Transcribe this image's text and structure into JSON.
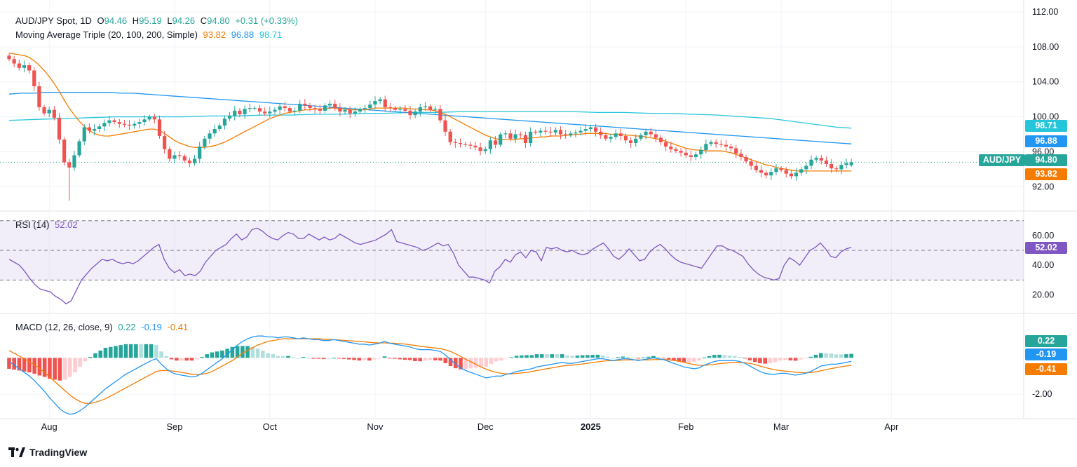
{
  "header": {
    "symbol": "AUD/JPY Spot, 1D",
    "o_label": "O",
    "o_value": "94.46",
    "h_label": "H",
    "h_value": "95.19",
    "l_label": "L",
    "l_value": "94.26",
    "c_label": "C",
    "c_value": "94.80",
    "change": "+0.31 (+0.33%)",
    "ma_label": "Moving Average Triple (20, 100, 200, Simple)",
    "ma20": "93.82",
    "ma100": "96.88",
    "ma200": "98.71"
  },
  "rsi_legend": {
    "label": "RSI (14)",
    "value": "52.02"
  },
  "macd_legend": {
    "label": "MACD (12, 26, close, 9)",
    "hist": "0.22",
    "macd": "-0.19",
    "signal": "-0.41"
  },
  "badges": {
    "ma200": "98.71",
    "ma100": "96.88",
    "pair": "AUD/JPY",
    "price": "94.80",
    "ma20": "93.82",
    "rsi": "52.02",
    "hist": "0.22",
    "macd": "-0.19",
    "signal": "-0.41"
  },
  "colors": {
    "up": "#26a69a",
    "down": "#ef5350",
    "ma20": "#f57c00",
    "ma100": "#2196f3",
    "ma200": "#26c6da",
    "rsi": "#7e57c2",
    "macd": "#2196f3",
    "signal": "#f57c00",
    "hist_up_strong": "#26a69a",
    "hist_up_weak": "#b2dfdb",
    "hist_down_strong": "#ef5350",
    "hist_down_weak": "#ffcdd2",
    "grid": "#f0f3fa"
  },
  "brand": {
    "name": "TradingView"
  },
  "chart_data": [
    {
      "type": "candlestick",
      "title": "AUD/JPY Spot, 1D",
      "price_ticks": [
        "112.00",
        "108.00",
        "104.00",
        "100.00",
        "96.00",
        "92.00"
      ],
      "ylim": [
        89.3,
        112.4
      ],
      "time_labels": [
        "Aug",
        "Sep",
        "Oct",
        "Nov",
        "Dec",
        "2025",
        "Feb",
        "Mar",
        "Apr"
      ],
      "label_bar_index": [
        8,
        33,
        52,
        73,
        95,
        116,
        135,
        154,
        176
      ],
      "last_ohlc": {
        "open": 94.46,
        "high": 95.19,
        "low": 94.26,
        "close": 94.8
      },
      "closes": [
        106.6,
        106.1,
        105.6,
        105.9,
        105.3,
        103.5,
        101.1,
        100.4,
        100.8,
        99.9,
        97.4,
        94.8,
        94.2,
        95.6,
        97.2,
        98.8,
        98.4,
        98.6,
        98.9,
        99.3,
        99.6,
        99.4,
        99.2,
        99.1,
        99.0,
        99.2,
        99.4,
        99.7,
        100.0,
        99.7,
        97.8,
        96.3,
        95.2,
        95.6,
        95.5,
        95.0,
        94.7,
        95.2,
        96.6,
        97.5,
        98.1,
        98.6,
        99.0,
        99.8,
        100.1,
        100.7,
        100.3,
        100.9,
        101.0,
        101.0,
        100.6,
        100.4,
        100.6,
        100.8,
        101.2,
        101.0,
        100.6,
        100.7,
        101.5,
        101.3,
        101.0,
        100.9,
        100.7,
        101.3,
        101.5,
        101.0,
        100.6,
        100.8,
        100.4,
        100.6,
        100.9,
        101.0,
        101.4,
        101.8,
        102.0,
        101.1,
        101.0,
        100.8,
        100.9,
        100.7,
        100.2,
        100.6,
        101.1,
        101.2,
        100.8,
        100.9,
        99.6,
        98.3,
        97.1,
        97.0,
        96.9,
        96.8,
        96.7,
        96.5,
        96.1,
        96.3,
        97.3,
        96.8,
        98.0,
        98.1,
        97.5,
        98.0,
        97.9,
        97.0,
        98.3,
        98.2,
        98.4,
        98.3,
        98.2,
        98.5,
        98.0,
        97.9,
        98.1,
        98.2,
        98.4,
        98.6,
        98.8,
        98.3,
        97.9,
        97.5,
        97.7,
        98.1,
        97.8,
        97.3,
        97.0,
        97.5,
        97.9,
        98.3,
        98.0,
        97.6,
        97.1,
        96.6,
        96.3,
        96.1,
        95.9,
        95.6,
        95.4,
        95.7,
        96.2,
        96.9,
        97.1,
        96.9,
        96.8,
        96.6,
        96.4,
        95.8,
        95.4,
        94.9,
        94.4,
        93.9,
        93.6,
        93.3,
        93.7,
        94.1,
        93.9,
        93.5,
        93.2,
        93.6,
        94.0,
        94.4,
        95.1,
        95.3,
        95.0,
        94.6,
        94.1,
        94.0,
        94.5,
        94.7,
        94.8
      ],
      "ma20": [
        107.3,
        107.2,
        107.1,
        107.0,
        106.8,
        106.4,
        105.9,
        105.3,
        104.6,
        103.8,
        102.9,
        101.9,
        101.0,
        100.2,
        99.5,
        98.9,
        98.4,
        98.1,
        97.9,
        97.8,
        97.8,
        97.9,
        98.0,
        98.1,
        98.2,
        98.3,
        98.4,
        98.5,
        98.6,
        98.6,
        98.4,
        98.1,
        97.7,
        97.3,
        97.0,
        96.8,
        96.6,
        96.5,
        96.5,
        96.5,
        96.6,
        96.7,
        96.9,
        97.1,
        97.4,
        97.7,
        98.0,
        98.3,
        98.6,
        98.9,
        99.2,
        99.5,
        99.8,
        100.0,
        100.2,
        100.4,
        100.5,
        100.6,
        100.7,
        100.8,
        100.8,
        100.9,
        100.9,
        100.9,
        101.0,
        101.0,
        100.9,
        100.9,
        100.8,
        100.8,
        100.8,
        100.8,
        100.9,
        101.0,
        101.0,
        101.0,
        101.0,
        101.0,
        101.0,
        101.0,
        100.9,
        100.9,
        100.9,
        100.8,
        100.8,
        100.7,
        100.5,
        100.3,
        100.0,
        99.7,
        99.4,
        99.1,
        98.8,
        98.5,
        98.2,
        97.9,
        97.7,
        97.5,
        97.4,
        97.4,
        97.4,
        97.4,
        97.5,
        97.5,
        97.6,
        97.6,
        97.7,
        97.7,
        97.8,
        97.8,
        97.8,
        97.9,
        97.9,
        98.0,
        98.0,
        98.1,
        98.1,
        98.1,
        98.1,
        98.1,
        98.0,
        98.0,
        98.0,
        97.9,
        97.9,
        97.8,
        97.8,
        97.7,
        97.6,
        97.5,
        97.4,
        97.2,
        97.0,
        96.8,
        96.6,
        96.4,
        96.3,
        96.2,
        96.2,
        96.1,
        96.1,
        96.1,
        96.1,
        96.0,
        95.9,
        95.7,
        95.5,
        95.3,
        95.1,
        94.9,
        94.7,
        94.5,
        94.4,
        94.2,
        94.1,
        94.0,
        93.9,
        93.8,
        93.8,
        93.8,
        93.8,
        93.8,
        93.8,
        93.8,
        93.8,
        93.8,
        93.8,
        93.8,
        93.8
      ],
      "ma100": [
        102.6,
        102.7,
        102.7,
        102.8,
        102.8,
        102.8,
        102.8,
        102.8,
        102.8,
        102.7,
        102.7,
        102.6,
        102.5,
        102.4,
        102.3,
        102.2,
        102.1,
        102.0,
        101.9,
        101.8,
        101.7,
        101.6,
        101.5,
        101.4,
        101.3,
        101.2,
        101.1,
        101.0,
        100.9,
        100.8,
        100.7,
        100.6,
        100.5,
        100.4,
        100.3,
        100.2,
        100.1,
        100.0,
        99.9,
        99.8,
        99.7,
        99.6,
        99.5,
        99.4,
        99.3,
        99.2,
        99.1,
        99.0,
        98.9,
        98.8,
        98.7,
        98.6,
        98.5,
        98.4,
        98.3,
        98.2,
        98.1,
        98.0,
        97.9,
        97.8,
        97.7,
        97.6,
        97.5,
        97.4,
        97.3,
        97.2,
        97.1,
        97.0,
        96.9
      ],
      "ma200": [
        99.6,
        99.65,
        99.7,
        99.75,
        99.8,
        99.85,
        99.9,
        99.95,
        100.0,
        100.0,
        100.0,
        100.0,
        100.0,
        100.0,
        100.05,
        100.1,
        100.1,
        100.1,
        100.15,
        100.2,
        100.2,
        100.2,
        100.25,
        100.3,
        100.3,
        100.3,
        100.35,
        100.4,
        100.4,
        100.45,
        100.5,
        100.5,
        100.5,
        100.55,
        100.6,
        100.6,
        100.6,
        100.6,
        100.6,
        100.6,
        100.6,
        100.6,
        100.6,
        100.55,
        100.5,
        100.5,
        100.5,
        100.45,
        100.4,
        100.4,
        100.35,
        100.3,
        100.25,
        100.2,
        100.1,
        100.0,
        99.9,
        99.8,
        99.6,
        99.4,
        99.2,
        99.0,
        98.8,
        98.71
      ]
    },
    {
      "type": "line",
      "title": "RSI (14)",
      "y_ticks": [
        "60.00",
        "40.00",
        "20.00"
      ],
      "ylim": [
        8,
        76
      ],
      "bands": [
        30,
        50,
        70
      ],
      "values": [
        44,
        42,
        40,
        36,
        31,
        27,
        24,
        23,
        22,
        19,
        17,
        14,
        16,
        23,
        30,
        34,
        38,
        41,
        44,
        43,
        44,
        42,
        41,
        42,
        41,
        43,
        46,
        49,
        52,
        54,
        44,
        38,
        35,
        37,
        33,
        34,
        33,
        36,
        42,
        46,
        50,
        52,
        54,
        58,
        61,
        57,
        59,
        64,
        65,
        63,
        60,
        58,
        57,
        60,
        62,
        61,
        58,
        58,
        61,
        59,
        57,
        59,
        57,
        58,
        61,
        59,
        57,
        55,
        54,
        55,
        56,
        57,
        59,
        61,
        64,
        56,
        55,
        54,
        53,
        52,
        50,
        51,
        53,
        55,
        53,
        54,
        48,
        40,
        36,
        32,
        32,
        31,
        30,
        28,
        36,
        39,
        44,
        42,
        47,
        49,
        45,
        50,
        49,
        43,
        52,
        51,
        52,
        50,
        49,
        50,
        48,
        47,
        48,
        51,
        53,
        55,
        51,
        46,
        44,
        47,
        51,
        47,
        43,
        44,
        49,
        52,
        54,
        51,
        47,
        44,
        42,
        41,
        40,
        39,
        38,
        43,
        48,
        53,
        53,
        51,
        50,
        48,
        46,
        41,
        37,
        34,
        32,
        31,
        30,
        31,
        40,
        45,
        43,
        40,
        45,
        50,
        52,
        55,
        51,
        46,
        45,
        49,
        51,
        52
      ],
      "current": 52.02
    },
    {
      "type": "bar+line",
      "title": "MACD (12, 26, close, 9)",
      "y_ticks": [
        "-2.00"
      ],
      "ylim": [
        -3.3,
        2.4
      ],
      "macd": [
        -0.2,
        -0.4,
        -0.6,
        -0.8,
        -1.0,
        -1.25,
        -1.55,
        -1.85,
        -2.2,
        -2.5,
        -2.8,
        -3.0,
        -3.1,
        -3.05,
        -2.9,
        -2.7,
        -2.45,
        -2.2,
        -1.95,
        -1.7,
        -1.5,
        -1.3,
        -1.1,
        -0.9,
        -0.75,
        -0.6,
        -0.45,
        -0.3,
        -0.15,
        -0.05,
        -0.35,
        -0.6,
        -0.8,
        -0.9,
        -0.95,
        -1.0,
        -1.05,
        -1.0,
        -0.85,
        -0.65,
        -0.45,
        -0.25,
        -0.05,
        0.2,
        0.45,
        0.7,
        0.9,
        1.05,
        1.15,
        1.2,
        1.2,
        1.15,
        1.15,
        1.1,
        1.15,
        1.15,
        1.1,
        1.05,
        1.1,
        1.05,
        1.0,
        1.0,
        0.95,
        0.95,
        1.0,
        0.95,
        0.9,
        0.85,
        0.8,
        0.75,
        0.75,
        0.7,
        0.75,
        0.8,
        0.9,
        0.8,
        0.75,
        0.7,
        0.65,
        0.6,
        0.5,
        0.45,
        0.45,
        0.45,
        0.4,
        0.35,
        0.15,
        -0.1,
        -0.35,
        -0.55,
        -0.7,
        -0.8,
        -0.9,
        -1.0,
        -1.1,
        -1.05,
        -1.0,
        -1.0,
        -0.9,
        -0.85,
        -0.75,
        -0.7,
        -0.65,
        -0.6,
        -0.5,
        -0.45,
        -0.4,
        -0.35,
        -0.3,
        -0.25,
        -0.3,
        -0.3,
        -0.25,
        -0.2,
        -0.15,
        -0.1,
        -0.05,
        -0.05,
        -0.1,
        -0.15,
        -0.1,
        -0.05,
        -0.05,
        -0.1,
        -0.15,
        -0.1,
        -0.05,
        0.0,
        -0.05,
        -0.1,
        -0.2,
        -0.3,
        -0.4,
        -0.5,
        -0.55,
        -0.6,
        -0.55,
        -0.4,
        -0.3,
        -0.2,
        -0.15,
        -0.15,
        -0.15,
        -0.15,
        -0.2,
        -0.3,
        -0.45,
        -0.6,
        -0.75,
        -0.85,
        -0.9,
        -0.9,
        -0.85,
        -0.85,
        -0.9,
        -0.95,
        -0.9,
        -0.85,
        -0.75,
        -0.6,
        -0.45,
        -0.4,
        -0.35,
        -0.35,
        -0.3,
        -0.25,
        -0.19
      ],
      "signal": [
        0.4,
        0.25,
        0.1,
        -0.05,
        -0.2,
        -0.38,
        -0.58,
        -0.8,
        -1.05,
        -1.3,
        -1.55,
        -1.8,
        -2.05,
        -2.25,
        -2.4,
        -2.5,
        -2.5,
        -2.45,
        -2.35,
        -2.25,
        -2.1,
        -1.95,
        -1.8,
        -1.65,
        -1.5,
        -1.35,
        -1.2,
        -1.05,
        -0.9,
        -0.75,
        -0.7,
        -0.7,
        -0.72,
        -0.75,
        -0.8,
        -0.85,
        -0.9,
        -0.92,
        -0.9,
        -0.85,
        -0.75,
        -0.6,
        -0.45,
        -0.3,
        -0.15,
        0.05,
        0.25,
        0.4,
        0.55,
        0.7,
        0.8,
        0.9,
        0.95,
        1.0,
        1.05,
        1.05,
        1.05,
        1.05,
        1.05,
        1.05,
        1.05,
        1.05,
        1.02,
        1.0,
        1.0,
        0.98,
        0.96,
        0.94,
        0.92,
        0.9,
        0.88,
        0.85,
        0.83,
        0.82,
        0.82,
        0.81,
        0.8,
        0.78,
        0.76,
        0.72,
        0.68,
        0.64,
        0.6,
        0.57,
        0.54,
        0.5,
        0.44,
        0.35,
        0.22,
        0.08,
        -0.08,
        -0.22,
        -0.36,
        -0.5,
        -0.62,
        -0.72,
        -0.8,
        -0.85,
        -0.88,
        -0.88,
        -0.86,
        -0.83,
        -0.8,
        -0.75,
        -0.7,
        -0.65,
        -0.6,
        -0.55,
        -0.5,
        -0.45,
        -0.42,
        -0.4,
        -0.37,
        -0.34,
        -0.3,
        -0.26,
        -0.22,
        -0.18,
        -0.16,
        -0.15,
        -0.14,
        -0.12,
        -0.11,
        -0.11,
        -0.12,
        -0.12,
        -0.11,
        -0.1,
        -0.09,
        -0.09,
        -0.11,
        -0.14,
        -0.19,
        -0.25,
        -0.31,
        -0.37,
        -0.41,
        -0.41,
        -0.39,
        -0.36,
        -0.32,
        -0.29,
        -0.27,
        -0.25,
        -0.25,
        -0.27,
        -0.31,
        -0.37,
        -0.45,
        -0.53,
        -0.6,
        -0.66,
        -0.7,
        -0.73,
        -0.76,
        -0.79,
        -0.81,
        -0.82,
        -0.81,
        -0.77,
        -0.71,
        -0.65,
        -0.59,
        -0.54,
        -0.49,
        -0.45,
        -0.41
      ]
    }
  ]
}
